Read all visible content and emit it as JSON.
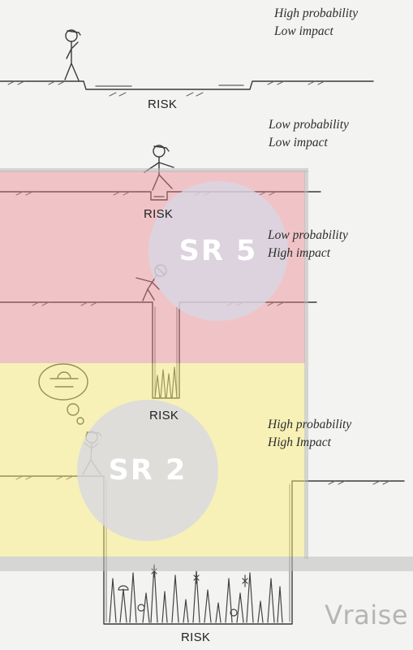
{
  "scenarios": [
    {
      "probability": "High probability",
      "impact": "Low impact",
      "risk_label": "RISK"
    },
    {
      "probability": "Low probability",
      "impact": "Low impact",
      "risk_label": "RISK"
    },
    {
      "probability": "Low probability",
      "impact": "High impact",
      "risk_label": "RISK"
    },
    {
      "probability": "High probability",
      "impact": "High Impact",
      "risk_label": "RISK"
    }
  ],
  "zones": {
    "upper": {
      "label": "SR 5",
      "color": "#ec828c"
    },
    "lower": {
      "label": "SR 2",
      "color": "#faee78"
    }
  },
  "watermark": "Vraise"
}
